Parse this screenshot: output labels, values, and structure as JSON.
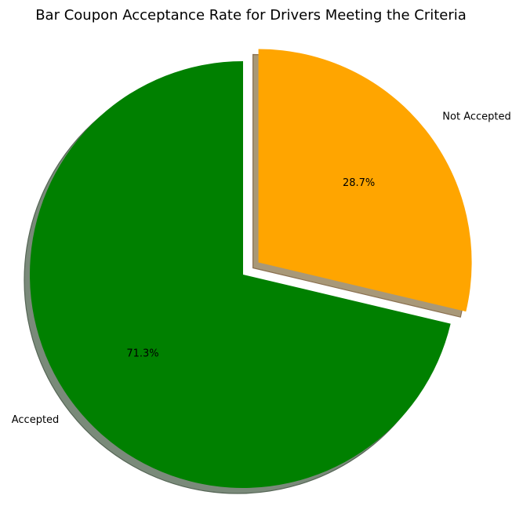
{
  "chart_data": {
    "type": "pie",
    "title": "Bar Coupon Acceptance Rate for Drivers Meeting the Criteria",
    "categories": [
      "Accepted",
      "Not Accepted"
    ],
    "values": [
      71.3,
      28.7
    ],
    "percent_labels": [
      "71.3%",
      "28.7%"
    ],
    "colors": [
      "#008000",
      "#ffa500"
    ],
    "exploded": [
      false,
      true
    ],
    "shadow": true,
    "start_angle_deg": 90,
    "counterclockwise": true
  }
}
